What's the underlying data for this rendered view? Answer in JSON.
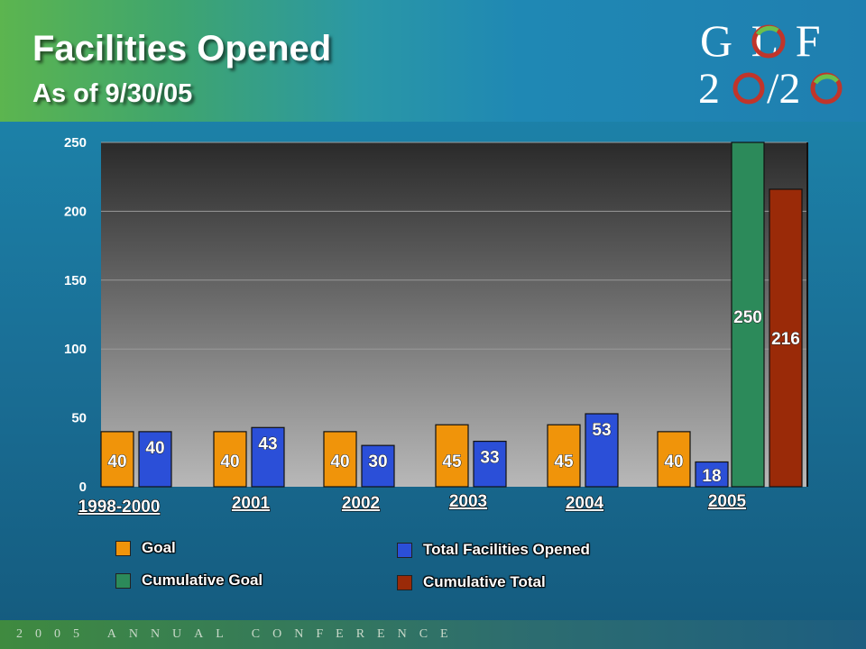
{
  "header": {
    "title": "Facilities Opened",
    "subtitle": "As of 9/30/05"
  },
  "logo": {
    "line1": "G L F",
    "line2": "2",
    "line2b": "/2"
  },
  "colors": {
    "goal": "#f0940a",
    "total_opened": "#2b4fd8",
    "cumulative_goal": "#2c8a5a",
    "cumulative_total": "#9a2a08"
  },
  "chart_data": {
    "type": "bar",
    "categories": [
      "1998-2000",
      "2001",
      "2002",
      "2003",
      "2004",
      "2005"
    ],
    "series": [
      {
        "name": "Goal",
        "values": [
          40,
          40,
          40,
          45,
          45,
          40
        ]
      },
      {
        "name": "Total Facilities Opened",
        "values": [
          40,
          43,
          30,
          33,
          53,
          18
        ]
      },
      {
        "name": "Cumulative Goal",
        "values": [
          null,
          null,
          null,
          null,
          null,
          250
        ]
      },
      {
        "name": "Cumulative Total",
        "values": [
          null,
          null,
          null,
          null,
          null,
          216
        ]
      }
    ],
    "ylim": [
      0,
      250
    ],
    "yticks": [
      0,
      50,
      100,
      150,
      200,
      250
    ],
    "grid": true,
    "legend_position": "bottom"
  },
  "legend": [
    {
      "label": "Goal",
      "color": "#f0940a"
    },
    {
      "label": "Cumulative Goal",
      "color": "#2c8a5a"
    },
    {
      "label": "Total Facilities Opened",
      "color": "#2b4fd8"
    },
    {
      "label": "Cumulative Total",
      "color": "#9a2a08"
    }
  ],
  "footer": {
    "text": "2005 ANNUAL CONFERENCE"
  }
}
